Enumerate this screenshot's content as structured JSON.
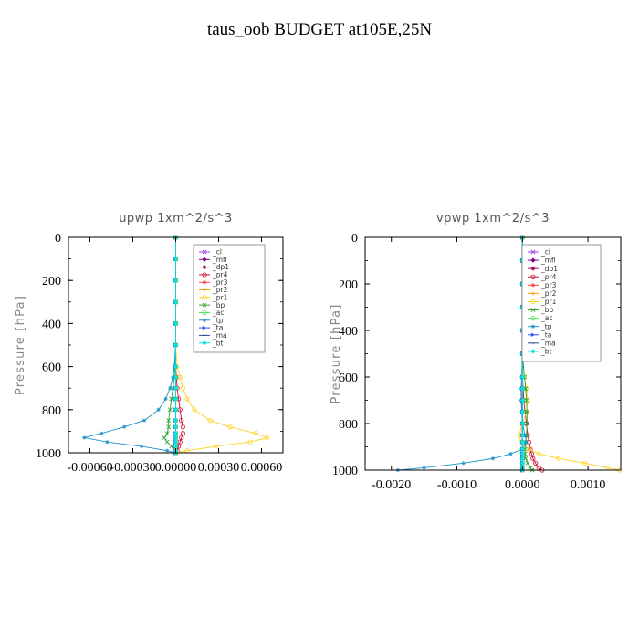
{
  "title": "taus_oob  BUDGET at105E,25N",
  "chart_data": [
    {
      "type": "line",
      "title": "upwp   1xm^2/s^3",
      "ylabel": "Pressure [hPa]",
      "xlim": [
        -0.00075,
        0.00075
      ],
      "ylim": [
        1000,
        0
      ],
      "xticks": [
        -0.0006,
        -0.0003,
        0.0,
        0.0003,
        0.0006
      ],
      "xtick_labels": [
        "-0.00060",
        "-0.00030",
        "0.00000",
        "0.00030",
        "0.00060"
      ],
      "yticks": [
        0,
        200,
        400,
        600,
        800,
        1000
      ],
      "legend_position": "top-right",
      "y": [
        0,
        100,
        200,
        300,
        400,
        500,
        600,
        650,
        700,
        750,
        800,
        850,
        880,
        910,
        930,
        950,
        970,
        990,
        1000
      ],
      "series": [
        {
          "name": "_cl",
          "color": "#a040e0",
          "marker": "x",
          "values": [
            0,
            0,
            0,
            0,
            0,
            0,
            0,
            0,
            0,
            0,
            0,
            0,
            0,
            0,
            0,
            0,
            0,
            0,
            0
          ]
        },
        {
          "name": "_mfl",
          "color": "#800080",
          "marker": "D",
          "values": [
            0,
            0,
            0,
            0,
            0,
            0,
            0,
            0,
            0,
            0,
            0,
            0,
            0,
            0,
            0,
            0,
            0,
            0,
            0
          ]
        },
        {
          "name": "_dp1",
          "color": "#a0105a",
          "marker": "D",
          "values": [
            0,
            0,
            0,
            0,
            0,
            0,
            0,
            0,
            0,
            0,
            0,
            0,
            0,
            0,
            0,
            0,
            0,
            0,
            0
          ]
        },
        {
          "name": "_pr4",
          "color": "#c8102e",
          "marker": "o",
          "values": [
            0,
            0,
            0,
            0,
            0,
            0,
            0,
            5e-06,
            1e-05,
            2e-05,
            3e-05,
            4e-05,
            5e-05,
            5e-05,
            4e-05,
            3e-05,
            2e-05,
            1e-05,
            0
          ]
        },
        {
          "name": "_pr3",
          "color": "#ff3b3b",
          "marker": "*",
          "values": [
            0,
            0,
            0,
            0,
            0,
            0,
            0,
            0,
            0,
            0,
            0,
            0,
            0,
            0,
            0,
            0,
            0,
            0,
            0
          ]
        },
        {
          "name": "_pr2",
          "color": "#ff9900",
          "marker": "+",
          "values": [
            0,
            0,
            0,
            0,
            0,
            0,
            0,
            0,
            0,
            0,
            0,
            0,
            0,
            0,
            0,
            0,
            0,
            0,
            0
          ]
        },
        {
          "name": "_pr1",
          "color": "#ffd21f",
          "marker": "o",
          "values": [
            0,
            0,
            0,
            0,
            0,
            0,
            1e-05,
            3e-05,
            5e-05,
            8e-05,
            0.00013,
            0.00024,
            0.00038,
            0.00056,
            0.00064,
            0.00052,
            0.00028,
            8e-05,
            0
          ]
        },
        {
          "name": "_bp",
          "color": "#2e9e2e",
          "marker": "x",
          "values": [
            0,
            0,
            0,
            0,
            0,
            0,
            -5e-06,
            -1e-05,
            -2e-05,
            -3e-05,
            -4e-05,
            -5e-05,
            -5e-05,
            -6e-05,
            -8e-05,
            -6e-05,
            -3e-05,
            -1e-05,
            0
          ]
        },
        {
          "name": "_ac",
          "color": "#5fe05f",
          "marker": "o",
          "values": [
            0,
            0,
            0,
            0,
            0,
            0,
            0,
            0,
            0,
            0,
            0,
            0,
            0,
            0,
            0,
            0,
            0,
            0,
            0
          ]
        },
        {
          "name": "_tp",
          "color": "#1e90c8",
          "marker": "*",
          "values": [
            0,
            0,
            0,
            0,
            0,
            0,
            -1e-05,
            -2e-05,
            -4e-05,
            -7e-05,
            -0.00012,
            -0.00022,
            -0.00036,
            -0.00052,
            -0.00064,
            -0.00048,
            -0.00024,
            -6e-05,
            0
          ]
        },
        {
          "name": "_ta",
          "color": "#3050ff",
          "marker": ">",
          "values": [
            0,
            0,
            0,
            0,
            0,
            0,
            0,
            0,
            0,
            0,
            0,
            0,
            0,
            0,
            0,
            0,
            0,
            0,
            0
          ]
        },
        {
          "name": "_ma",
          "color": "#2a4a8a",
          "marker": "-",
          "values": [
            0,
            0,
            0,
            0,
            0,
            0,
            0,
            0,
            0,
            0,
            0,
            0,
            0,
            0,
            0,
            0,
            0,
            0,
            0
          ]
        },
        {
          "name": "_bt",
          "color": "#00e5e5",
          "marker": "D",
          "values": [
            0,
            0,
            0,
            0,
            0,
            0,
            0,
            0,
            0,
            0,
            0,
            0,
            0,
            0,
            0,
            0,
            0,
            0,
            0
          ]
        }
      ]
    },
    {
      "type": "line",
      "title": "vpwp   1xm^2/s^3",
      "ylabel": "Pressure [hPa]",
      "xlim": [
        -0.0024,
        0.0015
      ],
      "ylim": [
        1000,
        0
      ],
      "xticks": [
        -0.002,
        -0.001,
        0.0,
        0.001
      ],
      "xtick_labels": [
        "-0.0020",
        "-0.0010",
        "0.0000",
        "0.0010"
      ],
      "yticks": [
        0,
        200,
        400,
        600,
        800,
        1000
      ],
      "legend_position": "top-right",
      "y": [
        0,
        100,
        200,
        300,
        400,
        500,
        600,
        650,
        700,
        750,
        800,
        850,
        880,
        910,
        930,
        950,
        970,
        990,
        1000
      ],
      "series": [
        {
          "name": "_cl",
          "color": "#a040e0",
          "marker": "x",
          "values": [
            0,
            0,
            0,
            0,
            0,
            0,
            0,
            0,
            0,
            0,
            0,
            0,
            0,
            0,
            0,
            0,
            0,
            0,
            0
          ]
        },
        {
          "name": "_mfl",
          "color": "#800080",
          "marker": "D",
          "values": [
            0,
            0,
            0,
            0,
            0,
            0,
            0,
            0,
            0,
            0,
            0,
            0,
            0,
            0,
            0,
            0,
            0,
            0,
            0
          ]
        },
        {
          "name": "_dp1",
          "color": "#a0105a",
          "marker": "D",
          "values": [
            0,
            0,
            0,
            0,
            0,
            0,
            0,
            0,
            0,
            0,
            0,
            0,
            0,
            0,
            0,
            0,
            0,
            0,
            0
          ]
        },
        {
          "name": "_pr4",
          "color": "#c8102e",
          "marker": "o",
          "values": [
            0,
            0,
            0,
            0,
            0,
            0,
            0,
            1e-05,
            2e-05,
            4e-05,
            6e-05,
            8e-05,
            0.0001,
            0.00012,
            0.00014,
            0.00016,
            0.0002,
            0.00025,
            0.0003
          ]
        },
        {
          "name": "_pr3",
          "color": "#ff3b3b",
          "marker": "*",
          "values": [
            0,
            0,
            0,
            0,
            0,
            0,
            0,
            0,
            0,
            0,
            0,
            0,
            0,
            0,
            0,
            0,
            0,
            0,
            0
          ]
        },
        {
          "name": "_pr2",
          "color": "#ff9900",
          "marker": "+",
          "values": [
            0,
            0,
            0,
            0,
            0,
            0,
            0,
            0,
            0,
            0,
            0,
            0,
            0,
            0,
            0,
            0,
            0,
            0,
            0
          ]
        },
        {
          "name": "_pr1",
          "color": "#ffd21f",
          "marker": "o",
          "values": [
            0,
            0,
            0,
            0,
            0,
            0,
            3e-05,
            6e-05,
            8e-05,
            6e-05,
            0.0,
            -5e-05,
            -2e-05,
            0.0001,
            0.00025,
            0.00055,
            0.00095,
            0.0013,
            0.00148
          ]
        },
        {
          "name": "_bp",
          "color": "#2e9e2e",
          "marker": "x",
          "values": [
            0,
            0,
            0,
            0,
            0,
            0,
            3e-05,
            5e-05,
            6e-05,
            7e-05,
            7e-05,
            6e-05,
            5e-05,
            4e-05,
            4e-05,
            5e-05,
            8e-05,
            0.00012,
            0.00015
          ]
        },
        {
          "name": "_ac",
          "color": "#5fe05f",
          "marker": "o",
          "values": [
            0,
            0,
            0,
            0,
            0,
            0,
            0,
            0,
            0,
            0,
            0,
            0,
            0,
            0,
            0,
            0,
            0,
            0,
            0
          ]
        },
        {
          "name": "_tp",
          "color": "#1e90c8",
          "marker": "*",
          "values": [
            0,
            0,
            0,
            0,
            0,
            0,
            -1e-05,
            -2e-05,
            -2e-05,
            -1e-05,
            0.0,
            4e-05,
            6e-05,
            0.0,
            -0.00018,
            -0.00045,
            -0.0009,
            -0.0015,
            -0.0019
          ]
        },
        {
          "name": "_ta",
          "color": "#3050ff",
          "marker": ">",
          "values": [
            0,
            0,
            0,
            0,
            0,
            0,
            0,
            0,
            0,
            0,
            0,
            0,
            0,
            0,
            0,
            0,
            0,
            0,
            0
          ]
        },
        {
          "name": "_ma",
          "color": "#2a4a8a",
          "marker": "-",
          "values": [
            0,
            0,
            0,
            0,
            0,
            0,
            0,
            0,
            0,
            0,
            0,
            0,
            0,
            0,
            0,
            0,
            0,
            0,
            0
          ]
        },
        {
          "name": "_bt",
          "color": "#00e5e5",
          "marker": "D",
          "values": [
            0,
            0,
            0,
            0,
            0,
            0,
            0,
            0,
            0,
            0,
            0,
            0,
            0,
            0,
            0,
            0,
            0,
            0,
            0
          ]
        }
      ]
    }
  ]
}
